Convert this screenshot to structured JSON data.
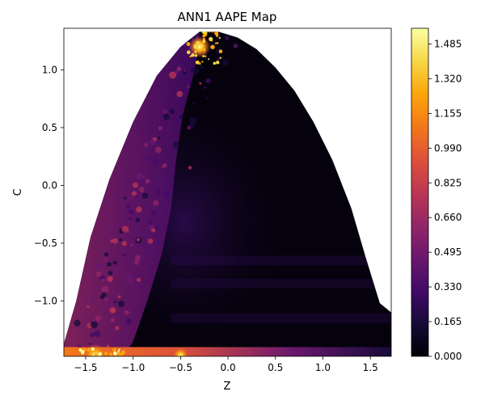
{
  "chart_data": {
    "type": "heatmap",
    "title": "ANN1 AAPE Map",
    "xlabel": "Z",
    "ylabel": "C",
    "xlim": [
      -1.73,
      1.72
    ],
    "ylim": [
      -1.48,
      1.36
    ],
    "x_ticks": [
      -1.5,
      -1.0,
      -0.5,
      0.0,
      0.5,
      1.0,
      1.5
    ],
    "x_tick_labels": [
      "−1.5",
      "−1.0",
      "−0.5",
      "0.0",
      "0.5",
      "1.0",
      "1.5"
    ],
    "y_ticks": [
      -1.0,
      -0.5,
      0.0,
      0.5,
      1.0
    ],
    "y_tick_labels": [
      "−1.0",
      "−0.5",
      "0.0",
      "0.5",
      "1.0"
    ],
    "colormap": "inferno",
    "colorbar": {
      "min": 0.0,
      "max": 1.56,
      "ticks": [
        0.0,
        0.165,
        0.33,
        0.495,
        0.66,
        0.825,
        0.99,
        1.155,
        1.32,
        1.485
      ],
      "tick_labels": [
        "0.000",
        "0.165",
        "0.330",
        "0.495",
        "0.660",
        "0.825",
        "0.990",
        "1.155",
        "1.320",
        "1.485"
      ]
    },
    "grid": false,
    "region_boundary": {
      "upper": [
        [
          -1.73,
          -1.37
        ],
        [
          -1.6,
          -1.0
        ],
        [
          -1.45,
          -0.45
        ],
        [
          -1.25,
          0.05
        ],
        [
          -1.0,
          0.55
        ],
        [
          -0.75,
          0.95
        ],
        [
          -0.5,
          1.2
        ],
        [
          -0.3,
          1.33
        ],
        [
          -0.1,
          1.33
        ],
        [
          0.1,
          1.28
        ],
        [
          0.3,
          1.18
        ],
        [
          0.5,
          1.02
        ],
        [
          0.7,
          0.82
        ],
        [
          0.9,
          0.55
        ],
        [
          1.1,
          0.22
        ],
        [
          1.3,
          -0.2
        ],
        [
          1.45,
          -0.62
        ],
        [
          1.6,
          -1.02
        ],
        [
          1.72,
          -1.1
        ]
      ],
      "lower": [
        [
          1.72,
          -1.48
        ],
        [
          -1.73,
          -1.48
        ]
      ]
    },
    "error_features": [
      {
        "z": -1.2,
        "c": -0.5,
        "aape": 0.4,
        "note": "left band"
      },
      {
        "z": -0.3,
        "c": 1.2,
        "aape": 1.4,
        "note": "apex hotspot"
      },
      {
        "z": -1.4,
        "c": -1.47,
        "aape": 1.3,
        "note": "bottom-left hotspot"
      },
      {
        "z": -0.5,
        "c": -1.47,
        "aape": 0.9,
        "note": "bottom strip"
      },
      {
        "z": 0.2,
        "c": 0.0,
        "aape": 0.05,
        "note": "interior"
      }
    ]
  }
}
